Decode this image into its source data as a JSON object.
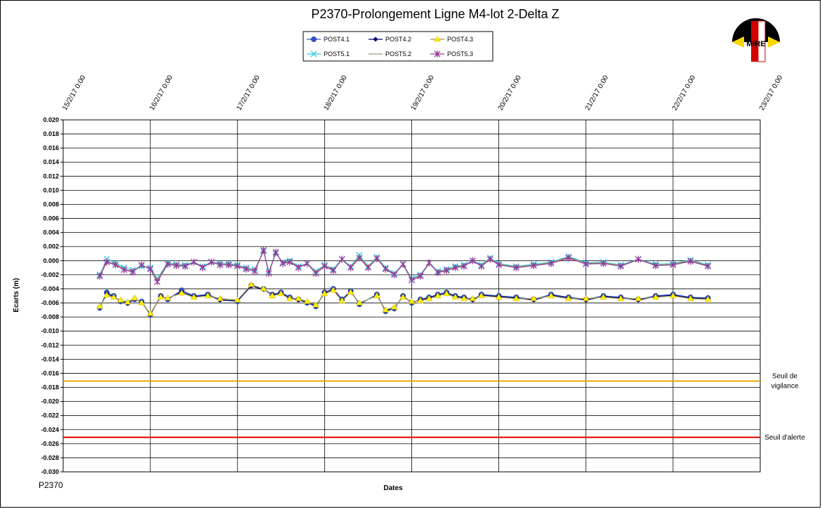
{
  "chart_data": {
    "type": "line",
    "title": "P2370-Prolongement  Ligne  M4-lot  2-Delta  Z",
    "xlabel": "Dates",
    "ylabel": "Ecarts (m)",
    "corner_label": "P2370",
    "logo_text": "MIRE",
    "x_range": [
      "15/2/17 0:00",
      "23/2/17 0:00"
    ],
    "y_range": [
      -0.03,
      0.02
    ],
    "y_ticks": [
      "0.020",
      "0.018",
      "0.016",
      "0.014",
      "0.012",
      "0.010",
      "0.008",
      "0.006",
      "0.004",
      "0.002",
      "0.000",
      "-0.002",
      "-0.004",
      "-0.006",
      "-0.008",
      "-0.010",
      "-0.012",
      "-0.014",
      "-0.016",
      "-0.018",
      "-0.020",
      "-0.022",
      "-0.024",
      "-0.026",
      "-0.028",
      "-0.030"
    ],
    "x_ticks": [
      "15/2/17 0:00",
      "16/2/17 0:00",
      "17/2/17 0:00",
      "18/2/17 0:00",
      "19/2/17 0:00",
      "20/2/17 0:00",
      "21/2/17 0:00",
      "22/2/17 0:00",
      "23/2/17 0:00"
    ],
    "grid": true,
    "legend_position": "top-center",
    "thresholds": [
      {
        "name_lines": [
          "Seuil de",
          "vigilance"
        ],
        "value": -0.0171,
        "color": "#e6a400"
      },
      {
        "name_lines": [
          "Seuil d'alerte"
        ],
        "value": -0.0251,
        "color": "#e00000"
      }
    ],
    "series": [
      {
        "name": "POST4.1",
        "color": "#3355cc",
        "marker": "circle",
        "x": [
          0.42,
          0.5,
          0.58,
          0.66,
          0.74,
          0.82,
          0.9,
          1.0,
          1.12,
          1.2,
          1.36,
          1.5,
          1.66,
          1.8,
          2.0,
          2.16,
          2.3,
          2.4,
          2.5,
          2.6,
          2.7,
          2.8,
          2.9,
          3.0,
          3.1,
          3.2,
          3.3,
          3.4,
          3.6,
          3.7,
          3.8,
          3.9,
          4.0,
          4.1,
          4.2,
          4.3,
          4.4,
          4.5,
          4.6,
          4.7,
          4.8,
          5.0,
          5.2,
          5.4,
          5.6,
          5.8,
          6.0,
          6.2,
          6.4,
          6.6,
          6.8,
          7.0,
          7.2,
          7.4
        ],
        "y": [
          -0.0067,
          -0.0045,
          -0.005,
          -0.0058,
          -0.006,
          -0.0055,
          -0.0058,
          -0.0077,
          -0.005,
          -0.0055,
          -0.0042,
          -0.005,
          -0.0048,
          -0.0055,
          -0.0058,
          -0.0035,
          -0.004,
          -0.0048,
          -0.0045,
          -0.0052,
          -0.0055,
          -0.006,
          -0.0065,
          -0.0045,
          -0.004,
          -0.0055,
          -0.0043,
          -0.0062,
          -0.0048,
          -0.0072,
          -0.0068,
          -0.005,
          -0.006,
          -0.0055,
          -0.0052,
          -0.0048,
          -0.0045,
          -0.005,
          -0.0052,
          -0.0055,
          -0.0048,
          -0.005,
          -0.0052,
          -0.0055,
          -0.0048,
          -0.0052,
          -0.0055,
          -0.005,
          -0.0052,
          -0.0055,
          -0.005,
          -0.0048,
          -0.0052,
          -0.0053
        ]
      },
      {
        "name": "POST4.2",
        "color": "#000066",
        "marker": "diamond",
        "x": [
          0.42,
          0.5,
          0.58,
          0.66,
          0.74,
          0.82,
          0.9,
          1.0,
          1.12,
          1.2,
          1.36,
          1.5,
          1.66,
          1.8,
          2.0,
          2.16,
          2.3,
          2.4,
          2.5,
          2.6,
          2.7,
          2.8,
          2.9,
          3.0,
          3.1,
          3.2,
          3.3,
          3.4,
          3.6,
          3.7,
          3.8,
          3.9,
          4.0,
          4.1,
          4.2,
          4.3,
          4.4,
          4.5,
          4.6,
          4.7,
          4.8,
          5.0,
          5.2,
          5.4,
          5.6,
          5.8,
          6.0,
          6.2,
          6.4,
          6.6,
          6.8,
          7.0,
          7.2,
          7.4
        ],
        "y": [
          -0.0066,
          -0.0047,
          -0.0051,
          -0.0057,
          -0.0061,
          -0.0054,
          -0.0059,
          -0.0076,
          -0.0051,
          -0.0054,
          -0.0044,
          -0.0051,
          -0.0049,
          -0.0056,
          -0.0057,
          -0.0036,
          -0.0041,
          -0.0049,
          -0.0046,
          -0.0053,
          -0.0056,
          -0.0059,
          -0.0064,
          -0.0046,
          -0.0041,
          -0.0056,
          -0.0044,
          -0.0061,
          -0.0049,
          -0.0071,
          -0.0067,
          -0.0051,
          -0.0059,
          -0.0056,
          -0.0053,
          -0.0049,
          -0.0046,
          -0.0051,
          -0.0053,
          -0.0056,
          -0.0049,
          -0.0051,
          -0.0053,
          -0.0056,
          -0.0049,
          -0.0053,
          -0.0056,
          -0.0051,
          -0.0053,
          -0.0056,
          -0.0051,
          -0.0049,
          -0.0053,
          -0.0054
        ]
      },
      {
        "name": "POST4.3",
        "color": "#ffee00",
        "marker": "triangle",
        "x": [
          0.42,
          0.5,
          0.58,
          0.66,
          0.74,
          0.82,
          0.9,
          1.0,
          1.12,
          1.2,
          1.36,
          1.5,
          1.66,
          1.8,
          2.0,
          2.16,
          2.3,
          2.4,
          2.5,
          2.6,
          2.7,
          2.8,
          2.9,
          3.0,
          3.1,
          3.2,
          3.3,
          3.4,
          3.6,
          3.7,
          3.8,
          3.9,
          4.0,
          4.1,
          4.2,
          4.3,
          4.4,
          4.5,
          4.6,
          4.7,
          4.8,
          5.0,
          5.2,
          5.4,
          5.6,
          5.8,
          6.0,
          6.2,
          6.4,
          6.6,
          6.8,
          7.0,
          7.2,
          7.4
        ],
        "y": [
          -0.0065,
          -0.0049,
          -0.0052,
          -0.0056,
          -0.0059,
          -0.0053,
          -0.006,
          -0.0075,
          -0.0052,
          -0.0053,
          -0.0046,
          -0.0052,
          -0.005,
          -0.0054,
          -0.0056,
          -0.0034,
          -0.004,
          -0.005,
          -0.0047,
          -0.0054,
          -0.0054,
          -0.0058,
          -0.0063,
          -0.0047,
          -0.0042,
          -0.0057,
          -0.0045,
          -0.006,
          -0.005,
          -0.007,
          -0.0066,
          -0.0052,
          -0.0058,
          -0.0057,
          -0.0054,
          -0.005,
          -0.0047,
          -0.0052,
          -0.0054,
          -0.0054,
          -0.005,
          -0.0052,
          -0.0054,
          -0.0054,
          -0.005,
          -0.0054,
          -0.0054,
          -0.0052,
          -0.0054,
          -0.0054,
          -0.0052,
          -0.005,
          -0.0054,
          -0.0055
        ]
      },
      {
        "name": "POST5.1",
        "color": "#33ccdd",
        "marker": "x",
        "x": [
          0.42,
          0.5,
          0.6,
          0.7,
          0.8,
          0.9,
          1.0,
          1.08,
          1.2,
          1.3,
          1.4,
          1.5,
          1.6,
          1.7,
          1.8,
          1.9,
          2.0,
          2.1,
          2.2,
          2.3,
          2.36,
          2.44,
          2.52,
          2.6,
          2.7,
          2.8,
          2.9,
          3.0,
          3.1,
          3.2,
          3.3,
          3.4,
          3.5,
          3.6,
          3.7,
          3.8,
          3.9,
          4.0,
          4.1,
          4.2,
          4.3,
          4.4,
          4.5,
          4.6,
          4.7,
          4.8,
          4.9,
          5.0,
          5.2,
          5.4,
          5.6,
          5.8,
          6.0,
          6.2,
          6.4,
          6.6,
          6.8,
          7.0,
          7.2,
          7.4
        ],
        "y": [
          -0.002,
          0.0002,
          -0.0003,
          -0.001,
          -0.0013,
          -0.0008,
          -0.001,
          -0.0025,
          -0.0003,
          -0.0005,
          -0.0006,
          -0.0002,
          -0.0008,
          -0.0002,
          -0.0004,
          -0.0004,
          -0.0006,
          -0.001,
          -0.0012,
          0.0013,
          -0.0015,
          0.001,
          -0.0002,
          0.0,
          -0.0008,
          -0.0004,
          -0.0015,
          -0.0006,
          -0.0012,
          0.0002,
          -0.0008,
          0.0008,
          -0.0008,
          0.0005,
          -0.001,
          -0.0018,
          -0.0005,
          -0.0025,
          -0.002,
          -0.0003,
          -0.0015,
          -0.0012,
          -0.0008,
          -0.0006,
          0.0,
          -0.0006,
          0.0004,
          -0.0004,
          -0.0008,
          -0.0005,
          -0.0002,
          0.0006,
          -0.0003,
          -0.0002,
          -0.0006,
          0.0002,
          -0.0005,
          -0.0004,
          0.0001,
          -0.0006
        ]
      },
      {
        "name": "POST5.2",
        "color": "#999966",
        "marker": "none",
        "x": [
          0.42,
          0.5,
          0.6,
          0.7,
          0.8,
          0.9,
          1.0,
          1.08,
          1.2,
          1.3,
          1.4,
          1.5,
          1.6,
          1.7,
          1.8,
          1.9,
          2.0,
          2.1,
          2.2,
          2.3,
          2.36,
          2.44,
          2.52,
          2.6,
          2.7,
          2.8,
          2.9,
          3.0,
          3.1,
          3.2,
          3.3,
          3.4,
          3.5,
          3.6,
          3.7,
          3.8,
          3.9,
          4.0,
          4.1,
          4.2,
          4.3,
          4.4,
          4.5,
          4.6,
          4.7,
          4.8,
          4.9,
          5.0,
          5.2,
          5.4,
          5.6,
          5.8,
          6.0,
          6.2,
          6.4,
          6.6,
          6.8,
          7.0,
          7.2,
          7.4
        ],
        "y": [
          -0.0021,
          -0.0001,
          -0.0005,
          -0.0012,
          -0.0015,
          -0.0007,
          -0.0011,
          -0.0027,
          -0.0004,
          -0.0006,
          -0.0007,
          -0.0003,
          -0.0009,
          -0.0003,
          -0.0005,
          -0.0005,
          -0.0007,
          -0.0011,
          -0.0013,
          0.0014,
          -0.0016,
          0.0011,
          -0.0003,
          -0.0001,
          -0.0009,
          -0.0005,
          -0.0016,
          -0.0007,
          -0.0013,
          0.0001,
          -0.0009,
          0.0006,
          -0.0009,
          0.0004,
          -0.0011,
          -0.0019,
          -0.0006,
          -0.0026,
          -0.0021,
          -0.0004,
          -0.0016,
          -0.0013,
          -0.0009,
          -0.0007,
          -0.0001,
          -0.0007,
          0.0003,
          -0.0005,
          -0.0009,
          -0.0006,
          -0.0003,
          0.0005,
          -0.0004,
          -0.0003,
          -0.0007,
          0.0001,
          -0.0006,
          -0.0005,
          0.0,
          -0.0007
        ]
      },
      {
        "name": "POST5.3",
        "color": "#993399",
        "marker": "star",
        "x": [
          0.42,
          0.5,
          0.6,
          0.7,
          0.8,
          0.9,
          1.0,
          1.08,
          1.2,
          1.3,
          1.4,
          1.5,
          1.6,
          1.7,
          1.8,
          1.9,
          2.0,
          2.1,
          2.2,
          2.3,
          2.36,
          2.44,
          2.52,
          2.6,
          2.7,
          2.8,
          2.9,
          3.0,
          3.1,
          3.2,
          3.3,
          3.4,
          3.5,
          3.6,
          3.7,
          3.8,
          3.9,
          4.0,
          4.1,
          4.2,
          4.3,
          4.4,
          4.5,
          4.6,
          4.7,
          4.8,
          4.9,
          5.0,
          5.2,
          5.4,
          5.6,
          5.8,
          6.0,
          6.2,
          6.4,
          6.6,
          6.8,
          7.0,
          7.2,
          7.4
        ],
        "y": [
          -0.0022,
          -0.0002,
          -0.0006,
          -0.0013,
          -0.0016,
          -0.0006,
          -0.0012,
          -0.003,
          -0.0005,
          -0.0007,
          -0.0008,
          -0.0002,
          -0.001,
          -0.0002,
          -0.0006,
          -0.0006,
          -0.0008,
          -0.0012,
          -0.0015,
          0.0015,
          -0.0018,
          0.0012,
          -0.0004,
          -0.0002,
          -0.001,
          -0.0004,
          -0.0018,
          -0.0008,
          -0.0014,
          0.0002,
          -0.001,
          0.0004,
          -0.001,
          0.0003,
          -0.0012,
          -0.002,
          -0.0005,
          -0.0028,
          -0.0022,
          -0.0003,
          -0.0017,
          -0.0014,
          -0.001,
          -0.0008,
          0.0,
          -0.0008,
          0.0002,
          -0.0006,
          -0.001,
          -0.0007,
          -0.0004,
          0.0004,
          -0.0005,
          -0.0004,
          -0.0008,
          0.0002,
          -0.0007,
          -0.0006,
          -0.0001,
          -0.0008
        ]
      }
    ]
  }
}
